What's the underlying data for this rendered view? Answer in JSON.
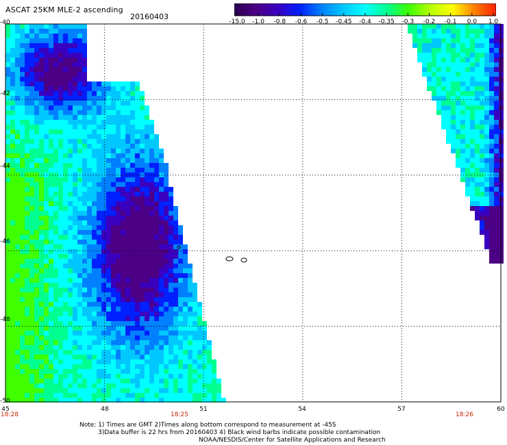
{
  "header": {
    "title": "ASCAT 25KM MLE-2 ascending",
    "date": "20160403"
  },
  "colorbar": {
    "labels": [
      "-15.0",
      "-1.0",
      "-0.8",
      "-0.6",
      "-0.5",
      "-0.45",
      "-0.4",
      "-0.35",
      "-0.3",
      "-0.2",
      "-0.1",
      "0.0",
      "1.0"
    ],
    "colors": [
      "#2a0050",
      "#4b0085",
      "#3a00c0",
      "#0020ff",
      "#0080ff",
      "#00c8ff",
      "#00ffff",
      "#00ff90",
      "#40ff00",
      "#b8ff00",
      "#ffff00",
      "#ff8000",
      "#ff2000"
    ]
  },
  "axes": {
    "lat_labels": [
      "-40",
      "-42",
      "-44",
      "-46",
      "-48",
      "-50"
    ],
    "lon_labels": [
      "45",
      "48",
      "51",
      "54",
      "57",
      "60"
    ],
    "time_labels": [
      {
        "text": "18:28",
        "lon": 45
      },
      {
        "text": "18:25",
        "lon": 50.3
      },
      {
        "text": "18:26",
        "lon": 58.8
      }
    ]
  },
  "notes": {
    "line1": "Note: 1) Times are GMT 2)Times along bottom correspond to measurement at -45S",
    "line2": "3)Data buffer is 22 hrs from 20160403 4) Black wind barbs indicate possible contamination",
    "line3": "NOAA/NESDIS/Center for Satellite Applications and Research"
  }
}
